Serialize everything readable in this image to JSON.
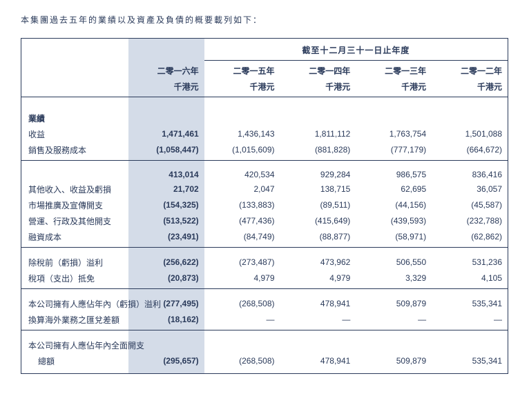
{
  "intro": "本集團過去五年的業績以及資產及負債的概要載列如下：",
  "header": {
    "period": "截至十二月三十一日止年度",
    "years": [
      "二零一六年",
      "二零一五年",
      "二零一四年",
      "二零一三年",
      "二零一二年"
    ],
    "unit": "千港元"
  },
  "sections": {
    "results_title": "業績",
    "rows": {
      "revenue": {
        "label": "收益",
        "values": [
          "1,471,461",
          "1,436,143",
          "1,811,112",
          "1,763,754",
          "1,501,088"
        ]
      },
      "cost": {
        "label": "銷售及服務成本",
        "values": [
          "(1,058,447)",
          "(1,015,609)",
          "(881,828)",
          "(777,179)",
          "(664,672)"
        ]
      },
      "gross": {
        "label": "",
        "values": [
          "413,014",
          "420,534",
          "929,284",
          "986,575",
          "836,416"
        ]
      },
      "other": {
        "label": "其他收入、收益及虧損",
        "values": [
          "21,702",
          "2,047",
          "138,715",
          "62,695",
          "36,057"
        ]
      },
      "market": {
        "label": "市場推廣及宣傳開支",
        "values": [
          "(154,325)",
          "(133,883)",
          "(89,511)",
          "(44,156)",
          "(45,587)"
        ]
      },
      "admin": {
        "label": "營運、行政及其他開支",
        "values": [
          "(513,522)",
          "(477,436)",
          "(415,649)",
          "(439,593)",
          "(232,788)"
        ]
      },
      "finance": {
        "label": "融資成本",
        "values": [
          "(23,491)",
          "(84,749)",
          "(88,877)",
          "(58,971)",
          "(62,862)"
        ]
      },
      "pbt": {
        "label": "除稅前（虧損）溢利",
        "values": [
          "(256,622)",
          "(273,487)",
          "473,962",
          "506,550",
          "531,236"
        ]
      },
      "tax": {
        "label": "稅項（支出）抵免",
        "values": [
          "(20,873)",
          "4,979",
          "4,979",
          "3,329",
          "4,105"
        ]
      },
      "attr": {
        "label": "本公司擁有人應佔年內（虧損）溢利",
        "values": [
          "(277,495)",
          "(268,508)",
          "478,941",
          "509,879",
          "535,341"
        ]
      },
      "fx": {
        "label": "換算海外業務之匯兌差額",
        "values": [
          "(18,162)",
          "—",
          "—",
          "—",
          "—"
        ]
      },
      "tci_l1": {
        "label": "本公司擁有人應佔年內全面開支"
      },
      "tci_l2": {
        "label": "總額",
        "values": [
          "(295,657)",
          "(268,508)",
          "478,941",
          "509,879",
          "535,341"
        ]
      }
    }
  },
  "colors": {
    "text": "#2a3a5a",
    "border": "#2a3a5a",
    "highlight": "#d4dce8",
    "background": "#ffffff"
  }
}
